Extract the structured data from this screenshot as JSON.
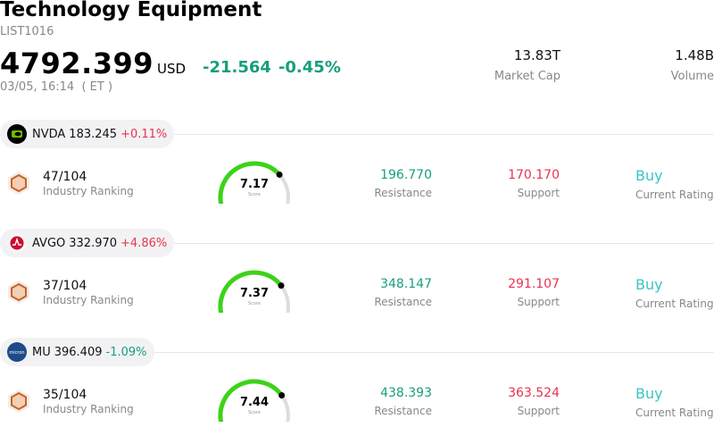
{
  "header": {
    "title": "Technology Equipment",
    "code": "LIST1016",
    "price": "4792.399",
    "currency": "USD",
    "change": "-21.564",
    "change_pct": "-0.45%",
    "datetime": "03/05, 16:14  ( ET )",
    "market_cap_value": "13.83T",
    "market_cap_label": "Market Cap",
    "volume_value": "1.48B",
    "volume_label": "Volume"
  },
  "labels": {
    "industry_ranking": "Industry Ranking",
    "resistance": "Resistance",
    "support": "Support",
    "current_rating": "Current Rating",
    "score": "Score"
  },
  "stocks": [
    {
      "ticker": "NVDA",
      "price": "183.245",
      "change_pct": "+0.11%",
      "direction": "up",
      "ranking": "47/104",
      "score": "7.17",
      "score_value": 7.17,
      "resistance": "196.770",
      "support": "170.170",
      "rating": "Buy",
      "logo": "nvidia-logo-icon"
    },
    {
      "ticker": "AVGO",
      "price": "332.970",
      "change_pct": "+4.86%",
      "direction": "up",
      "ranking": "37/104",
      "score": "7.37",
      "score_value": 7.37,
      "resistance": "348.147",
      "support": "291.107",
      "rating": "Buy",
      "logo": "broadcom-logo-icon"
    },
    {
      "ticker": "MU",
      "price": "396.409",
      "change_pct": "-1.09%",
      "direction": "down",
      "ranking": "35/104",
      "score": "7.44",
      "score_value": 7.44,
      "resistance": "438.393",
      "support": "363.524",
      "rating": "Buy",
      "logo": "micron-logo-icon"
    }
  ],
  "colors": {
    "up": "#e8344e",
    "down": "#179e7e",
    "gauge": "#3dd21a",
    "gauge_track": "#dcdce2",
    "rating": "#3bc4c4",
    "rank_icon": "#c8622a"
  }
}
